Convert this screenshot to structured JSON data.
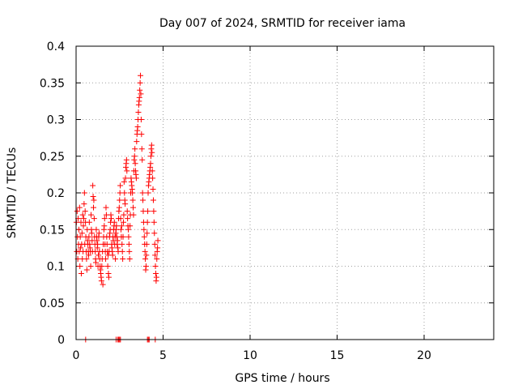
{
  "chart_data": {
    "type": "scatter",
    "title": "Day 007 of 2024, SRMTID for receiver iama",
    "xlabel": "GPS time / hours",
    "ylabel": "SRMTID / TECUs",
    "xlim": [
      0,
      24
    ],
    "ylim": [
      0,
      0.4
    ],
    "xticks": [
      0,
      5,
      10,
      15,
      20
    ],
    "xtick_labels": [
      "0",
      "5",
      "10",
      "15",
      "20"
    ],
    "yticks": [
      0,
      0.05,
      0.1,
      0.15,
      0.2,
      0.25,
      0.3,
      0.35,
      0.4
    ],
    "ytick_labels": [
      "0",
      "0.05",
      "0.1",
      "0.15",
      "0.2",
      "0.25",
      "0.3",
      "0.35",
      "0.4"
    ],
    "grid": true,
    "marker": "+",
    "color": "#ff0000",
    "series": [
      {
        "name": "SRMTID",
        "points": [
          [
            0.02,
            0.16
          ],
          [
            0.04,
            0.12
          ],
          [
            0.06,
            0.175
          ],
          [
            0.08,
            0.14
          ],
          [
            0.1,
            0.11
          ],
          [
            0.12,
            0.165
          ],
          [
            0.14,
            0.13
          ],
          [
            0.16,
            0.15
          ],
          [
            0.18,
            0.12
          ],
          [
            0.2,
            0.18
          ],
          [
            0.22,
            0.1
          ],
          [
            0.24,
            0.14
          ],
          [
            0.26,
            0.125
          ],
          [
            0.28,
            0.16
          ],
          [
            0.3,
            0.09
          ],
          [
            0.32,
            0.13
          ],
          [
            0.34,
            0.145
          ],
          [
            0.36,
            0.11
          ],
          [
            0.38,
            0.17
          ],
          [
            0.4,
            0.12
          ],
          [
            0.42,
            0.155
          ],
          [
            0.44,
            0.165
          ],
          [
            0.46,
            0.185
          ],
          [
            0.48,
            0.2
          ],
          [
            0.5,
            0.13
          ],
          [
            0.52,
            0.175
          ],
          [
            0.54,
            0.16
          ],
          [
            0.56,
            0.14
          ],
          [
            0.58,
            0.12
          ],
          [
            0.6,
            0.11
          ],
          [
            0.62,
            0.095
          ],
          [
            0.64,
            0.15
          ],
          [
            0.66,
            0.135
          ],
          [
            0.68,
            0.13
          ],
          [
            0.7,
            0.12
          ],
          [
            0.72,
            0.115
          ],
          [
            0.74,
            0.14
          ],
          [
            0.76,
            0.16
          ],
          [
            0.78,
            0.13
          ],
          [
            0.8,
            0.125
          ],
          [
            0.82,
            0.12
          ],
          [
            0.84,
            0.1
          ],
          [
            0.86,
            0.17
          ],
          [
            0.88,
            0.15
          ],
          [
            0.9,
            0.145
          ],
          [
            0.92,
            0.135
          ],
          [
            0.94,
            0.12
          ],
          [
            0.96,
            0.21
          ],
          [
            0.98,
            0.195
          ],
          [
            1.0,
            0.18
          ],
          [
            1.02,
            0.19
          ],
          [
            1.04,
            0.165
          ],
          [
            1.06,
            0.14
          ],
          [
            1.08,
            0.13
          ],
          [
            1.1,
            0.12
          ],
          [
            1.12,
            0.11
          ],
          [
            1.14,
            0.105
          ],
          [
            1.16,
            0.15
          ],
          [
            1.18,
            0.14
          ],
          [
            1.2,
            0.135
          ],
          [
            1.22,
            0.125
          ],
          [
            1.24,
            0.13
          ],
          [
            1.26,
            0.1
          ],
          [
            1.28,
            0.115
          ],
          [
            1.3,
            0.14
          ],
          [
            1.32,
            0.145
          ],
          [
            1.34,
            0.12
          ],
          [
            1.36,
            0.11
          ],
          [
            1.38,
            0.1
          ],
          [
            1.4,
            0.095
          ],
          [
            1.42,
            0.09
          ],
          [
            1.44,
            0.085
          ],
          [
            1.46,
            0.08
          ],
          [
            1.48,
            0.1
          ],
          [
            1.5,
            0.11
          ],
          [
            1.52,
            0.12
          ],
          [
            1.54,
            0.075
          ],
          [
            1.56,
            0.13
          ],
          [
            1.58,
            0.14
          ],
          [
            1.6,
            0.15
          ],
          [
            1.62,
            0.155
          ],
          [
            1.64,
            0.165
          ],
          [
            1.66,
            0.13
          ],
          [
            1.68,
            0.12
          ],
          [
            1.7,
            0.11
          ],
          [
            1.72,
            0.18
          ],
          [
            1.74,
            0.17
          ],
          [
            1.76,
            0.14
          ],
          [
            1.78,
            0.13
          ],
          [
            1.8,
            0.12
          ],
          [
            1.82,
            0.1
          ],
          [
            1.84,
            0.115
          ],
          [
            1.86,
            0.09
          ],
          [
            1.88,
            0.085
          ],
          [
            1.9,
            0.12
          ],
          [
            1.92,
            0.14
          ],
          [
            1.94,
            0.145
          ],
          [
            1.96,
            0.15
          ],
          [
            1.98,
            0.16
          ],
          [
            2.0,
            0.17
          ],
          [
            2.02,
            0.165
          ],
          [
            2.04,
            0.13
          ],
          [
            2.06,
            0.125
          ],
          [
            2.08,
            0.12
          ],
          [
            2.1,
            0.115
          ],
          [
            2.12,
            0.14
          ],
          [
            2.14,
            0.135
          ],
          [
            2.16,
            0.15
          ],
          [
            2.18,
            0.155
          ],
          [
            2.2,
            0.16
          ],
          [
            2.22,
            0.13
          ],
          [
            2.24,
            0.14
          ],
          [
            2.26,
            0.11
          ],
          [
            2.28,
            0.145
          ],
          [
            2.3,
            0.15
          ],
          [
            2.32,
            0.155
          ],
          [
            2.34,
            0.14
          ],
          [
            2.36,
            0.13
          ],
          [
            2.38,
            0.135
          ],
          [
            2.4,
            0.125
          ],
          [
            2.42,
            0.12
          ],
          [
            2.44,
            0.165
          ],
          [
            2.46,
            0.175
          ],
          [
            2.48,
            0.18
          ],
          [
            2.5,
            0.19
          ],
          [
            2.52,
            0.2
          ],
          [
            2.54,
            0.21
          ],
          [
            2.56,
            0.165
          ],
          [
            2.58,
            0.15
          ],
          [
            2.6,
            0.14
          ],
          [
            2.62,
            0.155
          ],
          [
            2.64,
            0.13
          ],
          [
            2.66,
            0.12
          ],
          [
            2.68,
            0.11
          ],
          [
            2.7,
            0.14
          ],
          [
            2.72,
            0.16
          ],
          [
            2.74,
            0.17
          ],
          [
            2.76,
            0.215
          ],
          [
            2.78,
            0.2
          ],
          [
            2.8,
            0.19
          ],
          [
            2.82,
            0.185
          ],
          [
            2.84,
            0.22
          ],
          [
            2.86,
            0.235
          ],
          [
            2.88,
            0.24
          ],
          [
            2.9,
            0.245
          ],
          [
            2.92,
            0.23
          ],
          [
            2.94,
            0.175
          ],
          [
            2.96,
            0.165
          ],
          [
            2.98,
            0.155
          ],
          [
            3.0,
            0.15
          ],
          [
            3.02,
            0.14
          ],
          [
            3.04,
            0.13
          ],
          [
            3.06,
            0.12
          ],
          [
            3.08,
            0.11
          ],
          [
            3.1,
            0.155
          ],
          [
            3.12,
            0.17
          ],
          [
            3.14,
            0.2
          ],
          [
            3.16,
            0.22
          ],
          [
            3.18,
            0.215
          ],
          [
            3.2,
            0.21
          ],
          [
            3.22,
            0.205
          ],
          [
            3.24,
            0.2
          ],
          [
            3.26,
            0.19
          ],
          [
            3.28,
            0.18
          ],
          [
            3.3,
            0.17
          ],
          [
            3.32,
            0.23
          ],
          [
            3.34,
            0.245
          ],
          [
            3.36,
            0.25
          ],
          [
            3.38,
            0.26
          ],
          [
            3.4,
            0.24
          ],
          [
            3.42,
            0.23
          ],
          [
            3.44,
            0.225
          ],
          [
            3.46,
            0.22
          ],
          [
            3.48,
            0.27
          ],
          [
            3.5,
            0.28
          ],
          [
            3.52,
            0.285
          ],
          [
            3.54,
            0.29
          ],
          [
            3.56,
            0.3
          ],
          [
            3.58,
            0.31
          ],
          [
            3.6,
            0.32
          ],
          [
            3.62,
            0.325
          ],
          [
            3.64,
            0.33
          ],
          [
            3.66,
            0.34
          ],
          [
            3.68,
            0.35
          ],
          [
            3.7,
            0.36
          ],
          [
            3.72,
            0.335
          ],
          [
            3.74,
            0.3
          ],
          [
            3.76,
            0.28
          ],
          [
            3.78,
            0.26
          ],
          [
            3.8,
            0.245
          ],
          [
            3.82,
            0.2
          ],
          [
            3.84,
            0.19
          ],
          [
            3.86,
            0.175
          ],
          [
            3.88,
            0.16
          ],
          [
            3.9,
            0.15
          ],
          [
            3.92,
            0.14
          ],
          [
            3.94,
            0.13
          ],
          [
            3.96,
            0.12
          ],
          [
            3.98,
            0.11
          ],
          [
            4.0,
            0.095
          ],
          [
            4.02,
            0.1
          ],
          [
            4.04,
            0.115
          ],
          [
            4.06,
            0.13
          ],
          [
            4.08,
            0.145
          ],
          [
            4.1,
            0.16
          ],
          [
            4.12,
            0.175
          ],
          [
            4.14,
            0.2
          ],
          [
            4.16,
            0.21
          ],
          [
            4.18,
            0.215
          ],
          [
            4.2,
            0.22
          ],
          [
            4.22,
            0.225
          ],
          [
            4.24,
            0.23
          ],
          [
            4.26,
            0.235
          ],
          [
            4.28,
            0.24
          ],
          [
            4.3,
            0.25
          ],
          [
            4.32,
            0.26
          ],
          [
            4.34,
            0.265
          ],
          [
            4.36,
            0.255
          ],
          [
            4.38,
            0.23
          ],
          [
            4.4,
            0.22
          ],
          [
            4.42,
            0.205
          ],
          [
            4.44,
            0.19
          ],
          [
            4.46,
            0.175
          ],
          [
            4.48,
            0.16
          ],
          [
            4.5,
            0.145
          ],
          [
            4.52,
            0.13
          ],
          [
            4.54,
            0.115
          ],
          [
            4.56,
            0.1
          ],
          [
            4.58,
            0.09
          ],
          [
            4.6,
            0.08
          ],
          [
            4.62,
            0.085
          ],
          [
            4.64,
            0.11
          ],
          [
            4.66,
            0.12
          ],
          [
            4.68,
            0.125
          ],
          [
            4.7,
            0.135
          ],
          [
            0.55,
            0.0
          ],
          [
            2.3,
            0.0
          ],
          [
            2.4,
            0.0
          ],
          [
            2.45,
            0.0
          ],
          [
            2.5,
            0.0
          ],
          [
            2.55,
            0.0
          ],
          [
            4.1,
            0.0
          ],
          [
            4.15,
            0.0
          ],
          [
            4.2,
            0.0
          ],
          [
            4.55,
            0.0
          ]
        ]
      }
    ]
  }
}
